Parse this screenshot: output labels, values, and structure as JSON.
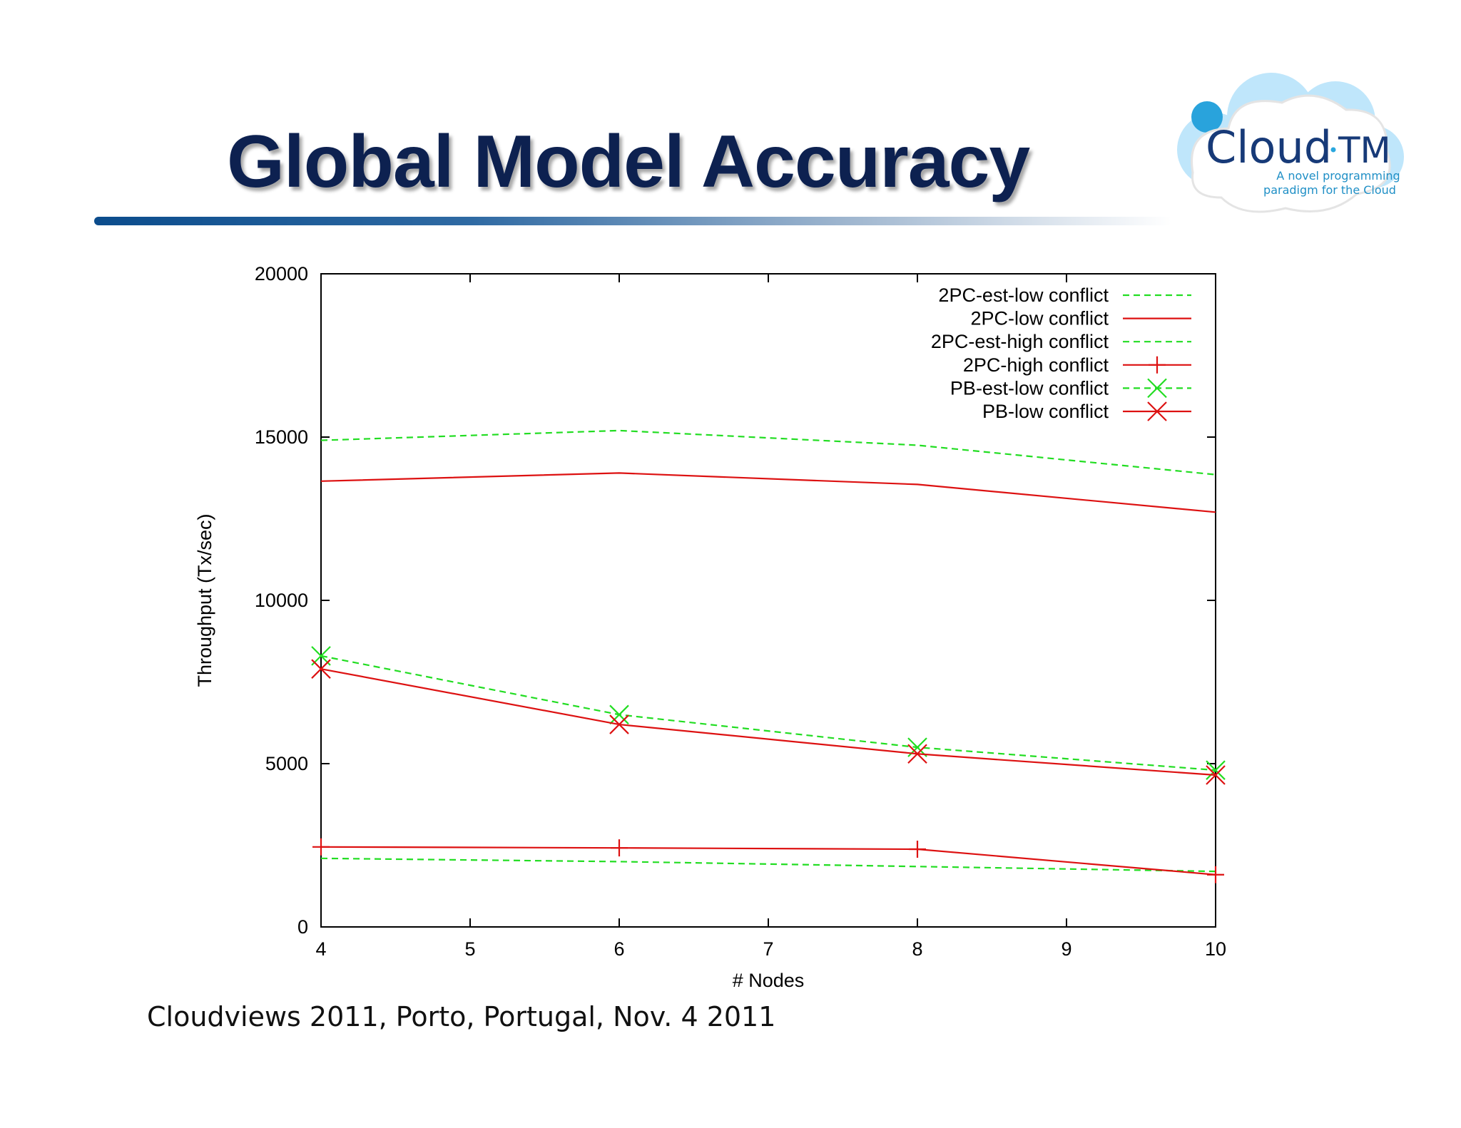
{
  "slide": {
    "title": "Global Model Accuracy",
    "footer": "Cloudviews 2011, Porto, Portugal, Nov. 4 2011"
  },
  "logo": {
    "brand_cloud": "Cloud",
    "brand_tm": "TM",
    "tagline_line1": "A novel programming",
    "tagline_line2": "paradigm for the Cloud"
  },
  "colors": {
    "title": "#0d2150",
    "green": "#22dd22",
    "red": "#dd1111"
  },
  "chart_data": {
    "type": "line",
    "xlabel": "# Nodes",
    "ylabel": "Throughput (Tx/sec)",
    "xlim": [
      4,
      10
    ],
    "ylim": [
      0,
      20000
    ],
    "xticks": [
      4,
      5,
      6,
      7,
      8,
      9,
      10
    ],
    "yticks": [
      0,
      5000,
      10000,
      15000,
      20000
    ],
    "grid": false,
    "legend_position": "top-right",
    "series": [
      {
        "name": "2PC-est-low conflict",
        "color": "#22dd22",
        "dash": true,
        "marker": "none",
        "x": [
          4,
          6,
          8,
          10
        ],
        "y": [
          14900,
          15200,
          14750,
          13850
        ]
      },
      {
        "name": "2PC-low conflict",
        "color": "#dd1111",
        "dash": false,
        "marker": "none",
        "x": [
          4,
          6,
          8,
          10
        ],
        "y": [
          13650,
          13900,
          13550,
          12700
        ]
      },
      {
        "name": "2PC-est-high conflict",
        "color": "#22dd22",
        "dash": true,
        "marker": "none",
        "x": [
          4,
          6,
          8,
          10
        ],
        "y": [
          2100,
          2000,
          1850,
          1700
        ]
      },
      {
        "name": "2PC-high conflict",
        "color": "#dd1111",
        "dash": false,
        "marker": "plus",
        "x": [
          4,
          6,
          8,
          10
        ],
        "y": [
          2450,
          2420,
          2380,
          1600
        ]
      },
      {
        "name": "PB-est-low conflict",
        "color": "#22dd22",
        "dash": true,
        "marker": "x",
        "x": [
          4,
          6,
          8,
          10
        ],
        "y": [
          8300,
          6500,
          5500,
          4800
        ]
      },
      {
        "name": "PB-low conflict",
        "color": "#dd1111",
        "dash": false,
        "marker": "x",
        "x": [
          4,
          6,
          8,
          10
        ],
        "y": [
          7900,
          6200,
          5300,
          4650
        ]
      }
    ]
  }
}
